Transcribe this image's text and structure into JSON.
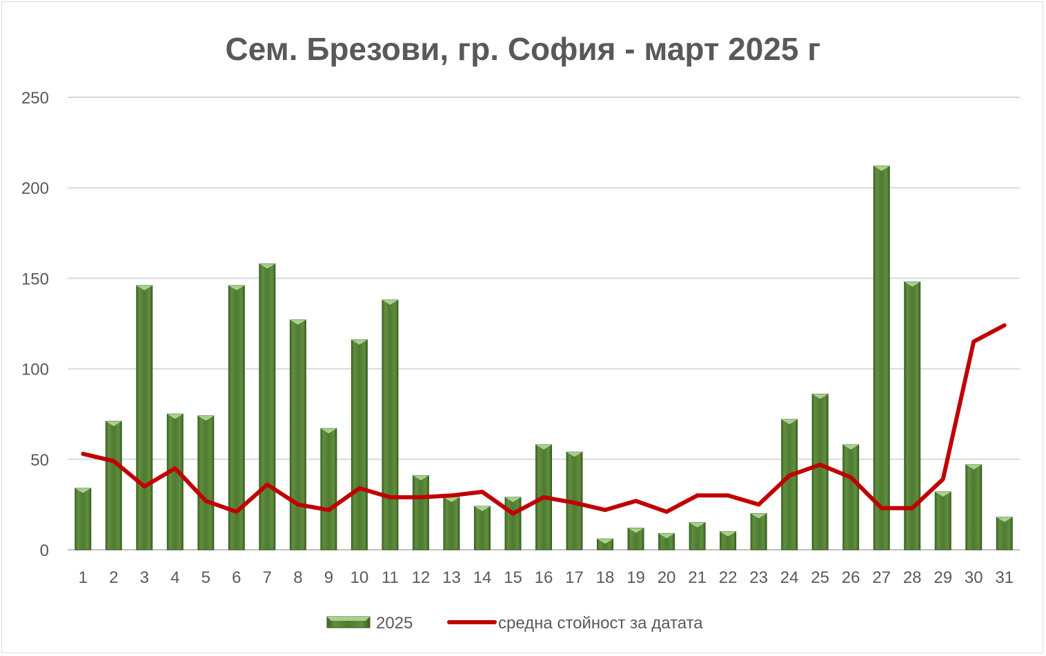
{
  "chart_data": {
    "type": "bar",
    "title": "Сем. Брезови, гр. София - март 2025 г",
    "xlabel": "",
    "ylabel": "",
    "ylim": [
      0,
      250
    ],
    "yticks": [
      0,
      50,
      100,
      150,
      200,
      250
    ],
    "grid": true,
    "legend_position": "bottom",
    "categories": [
      "1",
      "2",
      "3",
      "4",
      "5",
      "6",
      "7",
      "8",
      "9",
      "10",
      "11",
      "12",
      "13",
      "14",
      "15",
      "16",
      "17",
      "18",
      "19",
      "20",
      "21",
      "22",
      "23",
      "24",
      "25",
      "26",
      "27",
      "28",
      "29",
      "30",
      "31"
    ],
    "series": [
      {
        "name": "2025",
        "type": "bar",
        "color": "#548235",
        "values": [
          34,
          71,
          146,
          75,
          74,
          146,
          158,
          127,
          67,
          116,
          138,
          41,
          29,
          24,
          29,
          58,
          54,
          6,
          12,
          9,
          15,
          10,
          20,
          72,
          86,
          58,
          212,
          148,
          32,
          47,
          18
        ]
      },
      {
        "name": "средна стойност за датата",
        "type": "line",
        "color": "#c00000",
        "values": [
          53,
          49,
          35,
          45,
          27,
          21,
          36,
          25,
          22,
          34,
          29,
          29,
          30,
          32,
          20,
          29,
          26,
          22,
          27,
          21,
          30,
          30,
          25,
          41,
          47,
          40,
          23,
          23,
          39,
          115,
          124
        ]
      }
    ]
  }
}
